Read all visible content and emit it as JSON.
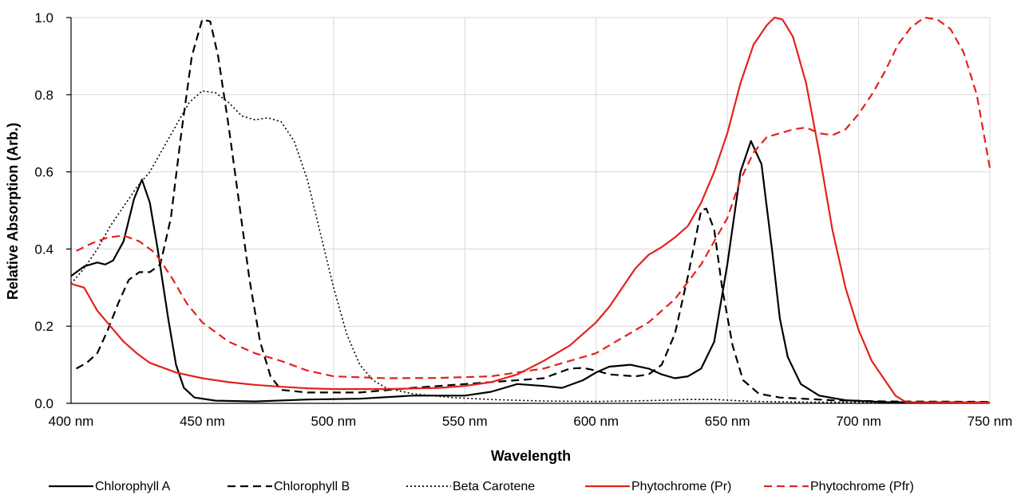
{
  "chart_data": {
    "type": "line",
    "title": "",
    "xlabel": "Wavelength",
    "ylabel": "Relative Absorption (Arb.)",
    "xlim": [
      400,
      750
    ],
    "ylim": [
      0,
      1
    ],
    "x_ticks": [
      {
        "value": 400,
        "label": "400 nm"
      },
      {
        "value": 450,
        "label": "450 nm"
      },
      {
        "value": 500,
        "label": "500 nm"
      },
      {
        "value": 550,
        "label": "550 nm"
      },
      {
        "value": 600,
        "label": "600 nm"
      },
      {
        "value": 650,
        "label": "650 nm"
      },
      {
        "value": 700,
        "label": "700 nm"
      },
      {
        "value": 750,
        "label": "750 nm"
      }
    ],
    "y_ticks": [
      {
        "value": 0,
        "label": "0.0"
      },
      {
        "value": 0.2,
        "label": "0.2"
      },
      {
        "value": 0.4,
        "label": "0.4"
      },
      {
        "value": 0.6,
        "label": "0.6"
      },
      {
        "value": 0.8,
        "label": "0.8"
      },
      {
        "value": 1.0,
        "label": "1.0"
      }
    ],
    "grid": true,
    "legend_position": "bottom",
    "series": [
      {
        "name": "Chlorophyll A",
        "color": "#000000",
        "dash": "solid",
        "points": [
          [
            400,
            0.33
          ],
          [
            405,
            0.355
          ],
          [
            410,
            0.365
          ],
          [
            413,
            0.36
          ],
          [
            416,
            0.37
          ],
          [
            420,
            0.42
          ],
          [
            424,
            0.53
          ],
          [
            427,
            0.58
          ],
          [
            430,
            0.52
          ],
          [
            433,
            0.4
          ],
          [
            437,
            0.22
          ],
          [
            440,
            0.1
          ],
          [
            443,
            0.04
          ],
          [
            447,
            0.015
          ],
          [
            455,
            0.007
          ],
          [
            470,
            0.005
          ],
          [
            490,
            0.01
          ],
          [
            510,
            0.012
          ],
          [
            530,
            0.02
          ],
          [
            550,
            0.02
          ],
          [
            560,
            0.03
          ],
          [
            570,
            0.05
          ],
          [
            580,
            0.045
          ],
          [
            587,
            0.04
          ],
          [
            595,
            0.06
          ],
          [
            600,
            0.08
          ],
          [
            605,
            0.095
          ],
          [
            613,
            0.1
          ],
          [
            620,
            0.09
          ],
          [
            625,
            0.075
          ],
          [
            630,
            0.065
          ],
          [
            635,
            0.07
          ],
          [
            640,
            0.09
          ],
          [
            645,
            0.16
          ],
          [
            650,
            0.36
          ],
          [
            655,
            0.6
          ],
          [
            659,
            0.68
          ],
          [
            663,
            0.62
          ],
          [
            667,
            0.4
          ],
          [
            670,
            0.22
          ],
          [
            673,
            0.12
          ],
          [
            678,
            0.05
          ],
          [
            685,
            0.02
          ],
          [
            695,
            0.008
          ],
          [
            710,
            0.003
          ],
          [
            750,
            0.002
          ]
        ]
      },
      {
        "name": "Chlorophyll B",
        "color": "#000000",
        "dash": "dashed",
        "points": [
          [
            402,
            0.09
          ],
          [
            406,
            0.105
          ],
          [
            410,
            0.13
          ],
          [
            414,
            0.19
          ],
          [
            418,
            0.26
          ],
          [
            422,
            0.32
          ],
          [
            426,
            0.34
          ],
          [
            430,
            0.34
          ],
          [
            434,
            0.36
          ],
          [
            438,
            0.48
          ],
          [
            442,
            0.7
          ],
          [
            446,
            0.9
          ],
          [
            450,
            0.995
          ],
          [
            453,
            0.99
          ],
          [
            456,
            0.9
          ],
          [
            460,
            0.72
          ],
          [
            464,
            0.52
          ],
          [
            468,
            0.32
          ],
          [
            472,
            0.16
          ],
          [
            476,
            0.07
          ],
          [
            480,
            0.035
          ],
          [
            490,
            0.028
          ],
          [
            510,
            0.028
          ],
          [
            530,
            0.04
          ],
          [
            550,
            0.05
          ],
          [
            570,
            0.06
          ],
          [
            580,
            0.065
          ],
          [
            590,
            0.09
          ],
          [
            595,
            0.092
          ],
          [
            600,
            0.085
          ],
          [
            605,
            0.075
          ],
          [
            615,
            0.07
          ],
          [
            620,
            0.075
          ],
          [
            625,
            0.1
          ],
          [
            630,
            0.18
          ],
          [
            635,
            0.33
          ],
          [
            640,
            0.5
          ],
          [
            642,
            0.505
          ],
          [
            645,
            0.45
          ],
          [
            648,
            0.3
          ],
          [
            652,
            0.15
          ],
          [
            656,
            0.06
          ],
          [
            662,
            0.025
          ],
          [
            670,
            0.015
          ],
          [
            690,
            0.008
          ],
          [
            710,
            0.005
          ],
          [
            750,
            0.004
          ]
        ]
      },
      {
        "name": "Beta Carotene",
        "color": "#000000",
        "dash": "dotted",
        "points": [
          [
            400,
            0.31
          ],
          [
            405,
            0.35
          ],
          [
            410,
            0.4
          ],
          [
            415,
            0.46
          ],
          [
            420,
            0.51
          ],
          [
            425,
            0.56
          ],
          [
            430,
            0.6
          ],
          [
            435,
            0.66
          ],
          [
            440,
            0.72
          ],
          [
            445,
            0.78
          ],
          [
            450,
            0.81
          ],
          [
            455,
            0.805
          ],
          [
            460,
            0.78
          ],
          [
            465,
            0.745
          ],
          [
            470,
            0.735
          ],
          [
            475,
            0.74
          ],
          [
            480,
            0.73
          ],
          [
            485,
            0.68
          ],
          [
            490,
            0.58
          ],
          [
            495,
            0.44
          ],
          [
            500,
            0.3
          ],
          [
            505,
            0.18
          ],
          [
            510,
            0.1
          ],
          [
            515,
            0.06
          ],
          [
            520,
            0.04
          ],
          [
            530,
            0.025
          ],
          [
            545,
            0.015
          ],
          [
            560,
            0.01
          ],
          [
            580,
            0.006
          ],
          [
            600,
            0.005
          ],
          [
            620,
            0.007
          ],
          [
            635,
            0.01
          ],
          [
            645,
            0.01
          ],
          [
            660,
            0.005
          ],
          [
            680,
            0.003
          ],
          [
            750,
            0.002
          ]
        ]
      },
      {
        "name": "Phytochrome (Pr)",
        "color": "#e3221c",
        "dash": "solid",
        "points": [
          [
            400,
            0.31
          ],
          [
            405,
            0.3
          ],
          [
            410,
            0.24
          ],
          [
            415,
            0.2
          ],
          [
            420,
            0.16
          ],
          [
            425,
            0.13
          ],
          [
            430,
            0.105
          ],
          [
            440,
            0.08
          ],
          [
            450,
            0.065
          ],
          [
            460,
            0.055
          ],
          [
            470,
            0.048
          ],
          [
            480,
            0.043
          ],
          [
            490,
            0.039
          ],
          [
            500,
            0.037
          ],
          [
            520,
            0.037
          ],
          [
            540,
            0.04
          ],
          [
            550,
            0.045
          ],
          [
            560,
            0.055
          ],
          [
            570,
            0.075
          ],
          [
            580,
            0.11
          ],
          [
            590,
            0.15
          ],
          [
            600,
            0.21
          ],
          [
            605,
            0.25
          ],
          [
            610,
            0.3
          ],
          [
            615,
            0.35
          ],
          [
            620,
            0.385
          ],
          [
            625,
            0.405
          ],
          [
            630,
            0.43
          ],
          [
            635,
            0.46
          ],
          [
            640,
            0.52
          ],
          [
            645,
            0.6
          ],
          [
            650,
            0.7
          ],
          [
            655,
            0.83
          ],
          [
            660,
            0.93
          ],
          [
            665,
            0.98
          ],
          [
            668,
            1.0
          ],
          [
            671,
            0.995
          ],
          [
            675,
            0.95
          ],
          [
            680,
            0.83
          ],
          [
            685,
            0.65
          ],
          [
            690,
            0.45
          ],
          [
            695,
            0.3
          ],
          [
            700,
            0.19
          ],
          [
            705,
            0.11
          ],
          [
            710,
            0.06
          ],
          [
            714,
            0.02
          ],
          [
            718,
            0.003
          ],
          [
            750,
            0.002
          ]
        ]
      },
      {
        "name": "Phytochrome (Pfr)",
        "color": "#e3221c",
        "dash": "dashed",
        "points": [
          [
            402,
            0.395
          ],
          [
            408,
            0.415
          ],
          [
            414,
            0.43
          ],
          [
            420,
            0.435
          ],
          [
            426,
            0.42
          ],
          [
            432,
            0.39
          ],
          [
            438,
            0.33
          ],
          [
            444,
            0.26
          ],
          [
            450,
            0.21
          ],
          [
            460,
            0.16
          ],
          [
            470,
            0.13
          ],
          [
            480,
            0.11
          ],
          [
            490,
            0.085
          ],
          [
            500,
            0.07
          ],
          [
            520,
            0.065
          ],
          [
            540,
            0.066
          ],
          [
            560,
            0.07
          ],
          [
            580,
            0.09
          ],
          [
            600,
            0.13
          ],
          [
            620,
            0.21
          ],
          [
            630,
            0.27
          ],
          [
            640,
            0.36
          ],
          [
            650,
            0.48
          ],
          [
            655,
            0.58
          ],
          [
            660,
            0.65
          ],
          [
            665,
            0.69
          ],
          [
            670,
            0.7
          ],
          [
            675,
            0.71
          ],
          [
            680,
            0.715
          ],
          [
            685,
            0.7
          ],
          [
            690,
            0.695
          ],
          [
            695,
            0.71
          ],
          [
            700,
            0.75
          ],
          [
            705,
            0.8
          ],
          [
            710,
            0.86
          ],
          [
            715,
            0.93
          ],
          [
            720,
            0.975
          ],
          [
            725,
            1.0
          ],
          [
            730,
            0.995
          ],
          [
            735,
            0.97
          ],
          [
            740,
            0.91
          ],
          [
            745,
            0.8
          ],
          [
            750,
            0.61
          ]
        ]
      }
    ]
  }
}
